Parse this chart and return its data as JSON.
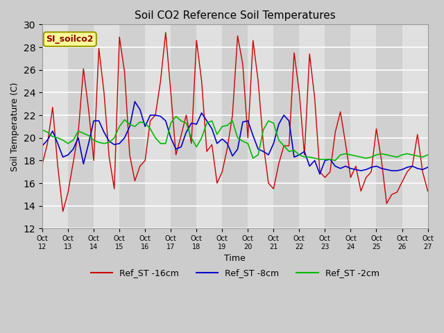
{
  "title": "Soil CO2 Reference Soil Temperatures",
  "xlabel": "Time",
  "ylabel": "Soil Temperature (C)",
  "ylim": [
    12,
    30
  ],
  "yticks": [
    12,
    14,
    16,
    18,
    20,
    22,
    24,
    26,
    28,
    30
  ],
  "legend_label": "SI_soilco2",
  "fig_facecolor": "#cccccc",
  "plot_facecolor": "#e8e8e8",
  "series_colors": {
    "16cm": "#cc0000",
    "8cm": "#0000cc",
    "2cm": "#00bb00"
  },
  "x_tick_labels": [
    "Oct 12",
    "Oct 13",
    "Oct 14",
    "Oct 15",
    "Oct 16",
    "Oct 17",
    "Oct 18",
    "Oct 19",
    "Oct 20",
    "Oct 21",
    "Oct 22",
    "Oct 23",
    "Oct 24",
    "Oct 25",
    "Oct 26",
    "Oct 27"
  ],
  "n_days": 16,
  "ST_16cm": [
    17.7,
    19.5,
    22.7,
    17.5,
    13.5,
    15.2,
    17.8,
    20.5,
    26.1,
    22.5,
    18.0,
    27.9,
    24.0,
    18.3,
    15.5,
    28.9,
    25.8,
    18.5,
    16.2,
    17.5,
    18.0,
    21.5,
    22.0,
    25.0,
    29.3,
    24.0,
    18.5,
    20.2,
    22.0,
    19.5,
    28.6,
    25.0,
    18.8,
    19.4,
    16.0,
    17.0,
    19.1,
    22.0,
    29.0,
    26.5,
    20.0,
    28.6,
    25.0,
    19.5,
    16.0,
    15.5,
    17.7,
    19.3,
    19.3,
    27.5,
    24.0,
    18.5,
    27.4,
    23.5,
    17.0,
    16.5,
    17.0,
    20.5,
    22.3,
    19.5,
    16.5,
    17.5,
    15.3,
    16.5,
    17.0,
    20.8,
    18.0,
    14.2,
    15.0,
    15.2,
    16.1,
    17.0,
    17.5,
    20.3,
    17.0,
    15.3
  ],
  "ST_8cm": [
    19.3,
    19.8,
    20.6,
    19.5,
    18.3,
    18.5,
    19.0,
    20.0,
    17.7,
    19.5,
    21.5,
    21.5,
    20.5,
    19.7,
    19.4,
    19.5,
    20.0,
    21.0,
    23.2,
    22.5,
    21.0,
    22.0,
    22.0,
    21.9,
    21.5,
    20.0,
    19.0,
    19.2,
    20.5,
    21.3,
    21.2,
    22.2,
    21.5,
    20.8,
    19.5,
    19.9,
    19.5,
    18.4,
    19.0,
    21.4,
    21.5,
    20.2,
    19.0,
    18.8,
    18.5,
    19.5,
    21.2,
    22.0,
    21.5,
    18.3,
    18.5,
    18.8,
    17.5,
    18.0,
    16.8,
    18.0,
    18.1,
    17.5,
    17.3,
    17.5,
    17.3,
    17.2,
    17.1,
    17.2,
    17.4,
    17.5,
    17.3,
    17.2,
    17.1,
    17.1,
    17.2,
    17.4,
    17.5,
    17.3,
    17.2,
    17.4
  ],
  "ST_2cm": [
    20.7,
    20.5,
    20.1,
    20.0,
    19.8,
    19.5,
    19.8,
    20.6,
    20.4,
    20.2,
    19.8,
    19.6,
    19.5,
    19.6,
    20.0,
    21.0,
    21.6,
    21.2,
    21.0,
    21.4,
    21.3,
    20.8,
    20.0,
    19.5,
    19.5,
    21.3,
    21.9,
    21.5,
    21.3,
    20.0,
    19.2,
    20.0,
    21.3,
    21.5,
    20.3,
    21.0,
    21.1,
    21.5,
    20.0,
    19.7,
    19.5,
    18.2,
    18.5,
    20.7,
    21.5,
    21.3,
    19.8,
    19.3,
    18.8,
    18.9,
    18.5,
    18.3,
    18.3,
    18.2,
    18.1,
    18.1,
    18.1,
    18.0,
    18.5,
    18.6,
    18.5,
    18.4,
    18.3,
    18.2,
    18.3,
    18.5,
    18.6,
    18.5,
    18.4,
    18.3,
    18.5,
    18.6,
    18.5,
    18.4,
    18.3,
    18.5
  ]
}
